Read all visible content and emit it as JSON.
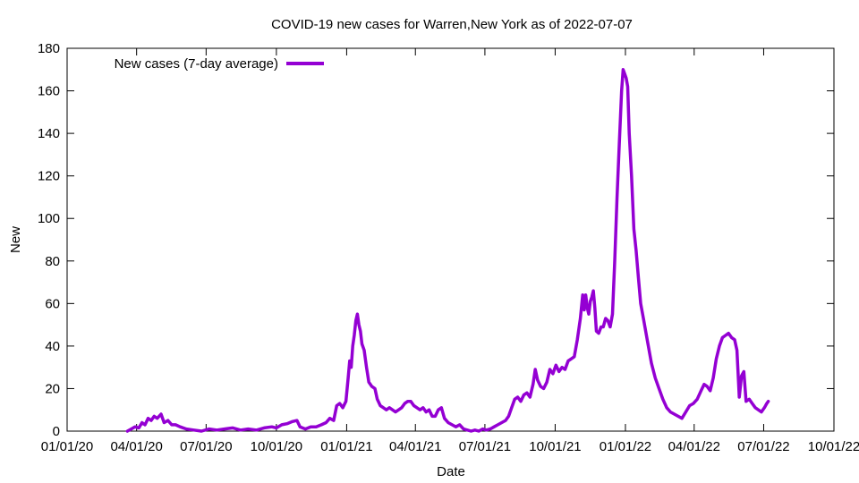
{
  "chart_data": {
    "type": "line",
    "title": "COVID-19 new cases for Warren,New York as of 2022-07-07",
    "xlabel": "Date",
    "ylabel": "New",
    "xlim": [
      "2020-01-01",
      "2022-10-01"
    ],
    "ylim": [
      0,
      180
    ],
    "x_ticks": [
      "01/01/20",
      "04/01/20",
      "07/01/20",
      "10/01/20",
      "01/01/21",
      "04/01/21",
      "07/01/21",
      "10/01/21",
      "01/01/22",
      "04/01/22",
      "07/01/22",
      "10/01/22"
    ],
    "y_ticks": [
      0,
      20,
      40,
      60,
      80,
      100,
      120,
      140,
      160,
      180
    ],
    "grid": false,
    "legend_position": "top-left",
    "series": [
      {
        "name": "New cases (7-day average)",
        "color": "#9400d3",
        "points": [
          [
            "2020-03-20",
            0
          ],
          [
            "2020-03-25",
            1
          ],
          [
            "2020-03-30",
            2
          ],
          [
            "2020-04-04",
            1.5
          ],
          [
            "2020-04-08",
            4
          ],
          [
            "2020-04-12",
            3
          ],
          [
            "2020-04-16",
            6
          ],
          [
            "2020-04-20",
            5
          ],
          [
            "2020-04-24",
            7
          ],
          [
            "2020-04-28",
            6
          ],
          [
            "2020-05-03",
            8
          ],
          [
            "2020-05-07",
            4
          ],
          [
            "2020-05-12",
            5
          ],
          [
            "2020-05-17",
            3
          ],
          [
            "2020-05-22",
            3
          ],
          [
            "2020-05-28",
            2
          ],
          [
            "2020-06-05",
            1
          ],
          [
            "2020-06-15",
            0.5
          ],
          [
            "2020-06-25",
            0
          ],
          [
            "2020-07-05",
            1
          ],
          [
            "2020-07-15",
            0.5
          ],
          [
            "2020-07-25",
            1
          ],
          [
            "2020-08-05",
            1.5
          ],
          [
            "2020-08-15",
            0.5
          ],
          [
            "2020-08-25",
            1
          ],
          [
            "2020-09-05",
            0.5
          ],
          [
            "2020-09-15",
            1.5
          ],
          [
            "2020-09-25",
            2
          ],
          [
            "2020-10-01",
            1.5
          ],
          [
            "2020-10-08",
            3
          ],
          [
            "2020-10-15",
            3.5
          ],
          [
            "2020-10-22",
            4.5
          ],
          [
            "2020-10-28",
            5
          ],
          [
            "2020-11-01",
            2
          ],
          [
            "2020-11-08",
            1
          ],
          [
            "2020-11-15",
            2
          ],
          [
            "2020-11-22",
            2
          ],
          [
            "2020-11-29",
            3
          ],
          [
            "2020-12-05",
            4
          ],
          [
            "2020-12-10",
            6
          ],
          [
            "2020-12-15",
            5
          ],
          [
            "2020-12-19",
            12
          ],
          [
            "2020-12-23",
            13
          ],
          [
            "2020-12-27",
            11
          ],
          [
            "2020-12-31",
            14
          ],
          [
            "2021-01-03",
            25
          ],
          [
            "2021-01-05",
            33
          ],
          [
            "2021-01-07",
            30
          ],
          [
            "2021-01-09",
            40
          ],
          [
            "2021-01-11",
            45
          ],
          [
            "2021-01-13",
            52
          ],
          [
            "2021-01-15",
            55
          ],
          [
            "2021-01-17",
            50
          ],
          [
            "2021-01-19",
            47
          ],
          [
            "2021-01-21",
            41
          ],
          [
            "2021-01-24",
            38
          ],
          [
            "2021-01-27",
            30
          ],
          [
            "2021-01-30",
            23
          ],
          [
            "2021-02-03",
            21
          ],
          [
            "2021-02-07",
            20
          ],
          [
            "2021-02-10",
            15
          ],
          [
            "2021-02-14",
            12
          ],
          [
            "2021-02-18",
            11
          ],
          [
            "2021-02-22",
            10
          ],
          [
            "2021-02-26",
            11
          ],
          [
            "2021-03-02",
            10
          ],
          [
            "2021-03-06",
            9
          ],
          [
            "2021-03-10",
            10
          ],
          [
            "2021-03-14",
            11
          ],
          [
            "2021-03-18",
            13
          ],
          [
            "2021-03-22",
            14
          ],
          [
            "2021-03-26",
            14
          ],
          [
            "2021-03-30",
            12
          ],
          [
            "2021-04-03",
            11
          ],
          [
            "2021-04-07",
            10
          ],
          [
            "2021-04-11",
            11
          ],
          [
            "2021-04-15",
            9
          ],
          [
            "2021-04-19",
            10
          ],
          [
            "2021-04-23",
            7
          ],
          [
            "2021-04-27",
            7
          ],
          [
            "2021-05-01",
            10
          ],
          [
            "2021-05-05",
            11
          ],
          [
            "2021-05-09",
            6
          ],
          [
            "2021-05-14",
            4
          ],
          [
            "2021-05-19",
            3
          ],
          [
            "2021-05-24",
            2
          ],
          [
            "2021-05-29",
            3
          ],
          [
            "2021-06-03",
            1
          ],
          [
            "2021-06-08",
            0.5
          ],
          [
            "2021-06-13",
            0
          ],
          [
            "2021-06-18",
            0.5
          ],
          [
            "2021-06-23",
            0
          ],
          [
            "2021-06-28",
            1
          ],
          [
            "2021-07-03",
            0.5
          ],
          [
            "2021-07-08",
            1
          ],
          [
            "2021-07-13",
            2
          ],
          [
            "2021-07-18",
            3
          ],
          [
            "2021-07-23",
            4
          ],
          [
            "2021-07-28",
            5
          ],
          [
            "2021-08-01",
            7
          ],
          [
            "2021-08-05",
            11
          ],
          [
            "2021-08-09",
            15
          ],
          [
            "2021-08-13",
            16
          ],
          [
            "2021-08-17",
            14
          ],
          [
            "2021-08-21",
            17
          ],
          [
            "2021-08-25",
            18
          ],
          [
            "2021-08-29",
            16
          ],
          [
            "2021-09-02",
            22
          ],
          [
            "2021-09-05",
            29
          ],
          [
            "2021-09-08",
            24
          ],
          [
            "2021-09-12",
            21
          ],
          [
            "2021-09-16",
            20
          ],
          [
            "2021-09-20",
            23
          ],
          [
            "2021-09-24",
            29
          ],
          [
            "2021-09-28",
            27
          ],
          [
            "2021-10-02",
            31
          ],
          [
            "2021-10-06",
            28
          ],
          [
            "2021-10-10",
            30
          ],
          [
            "2021-10-14",
            29
          ],
          [
            "2021-10-18",
            33
          ],
          [
            "2021-10-22",
            34
          ],
          [
            "2021-10-26",
            35
          ],
          [
            "2021-10-30",
            43
          ],
          [
            "2021-11-03",
            53
          ],
          [
            "2021-11-06",
            64
          ],
          [
            "2021-11-08",
            57
          ],
          [
            "2021-11-10",
            64
          ],
          [
            "2021-11-12",
            58
          ],
          [
            "2021-11-14",
            55
          ],
          [
            "2021-11-16",
            61
          ],
          [
            "2021-11-18",
            63
          ],
          [
            "2021-11-20",
            66
          ],
          [
            "2021-11-22",
            58
          ],
          [
            "2021-11-24",
            47
          ],
          [
            "2021-11-27",
            46
          ],
          [
            "2021-11-30",
            49
          ],
          [
            "2021-12-03",
            49
          ],
          [
            "2021-12-06",
            53
          ],
          [
            "2021-12-09",
            52
          ],
          [
            "2021-12-12",
            49
          ],
          [
            "2021-12-15",
            55
          ],
          [
            "2021-12-18",
            80
          ],
          [
            "2021-12-21",
            110
          ],
          [
            "2021-12-24",
            135
          ],
          [
            "2021-12-27",
            160
          ],
          [
            "2021-12-29",
            170
          ],
          [
            "2021-12-31",
            168
          ],
          [
            "2022-01-02",
            166
          ],
          [
            "2022-01-04",
            162
          ],
          [
            "2022-01-06",
            140
          ],
          [
            "2022-01-09",
            120
          ],
          [
            "2022-01-12",
            95
          ],
          [
            "2022-01-15",
            85
          ],
          [
            "2022-01-18",
            72
          ],
          [
            "2022-01-21",
            60
          ],
          [
            "2022-01-25",
            52
          ],
          [
            "2022-01-30",
            42
          ],
          [
            "2022-02-04",
            32
          ],
          [
            "2022-02-09",
            25
          ],
          [
            "2022-02-14",
            20
          ],
          [
            "2022-02-19",
            15
          ],
          [
            "2022-02-24",
            11
          ],
          [
            "2022-03-01",
            9
          ],
          [
            "2022-03-06",
            8
          ],
          [
            "2022-03-11",
            7
          ],
          [
            "2022-03-16",
            6
          ],
          [
            "2022-03-21",
            9
          ],
          [
            "2022-03-26",
            12
          ],
          [
            "2022-03-31",
            13
          ],
          [
            "2022-04-05",
            15
          ],
          [
            "2022-04-10",
            19
          ],
          [
            "2022-04-14",
            22
          ],
          [
            "2022-04-18",
            21
          ],
          [
            "2022-04-22",
            19
          ],
          [
            "2022-04-26",
            25
          ],
          [
            "2022-04-30",
            34
          ],
          [
            "2022-05-04",
            40
          ],
          [
            "2022-05-08",
            44
          ],
          [
            "2022-05-12",
            45
          ],
          [
            "2022-05-16",
            46
          ],
          [
            "2022-05-20",
            44
          ],
          [
            "2022-05-24",
            43
          ],
          [
            "2022-05-27",
            38
          ],
          [
            "2022-05-30",
            16
          ],
          [
            "2022-06-02",
            26
          ],
          [
            "2022-06-05",
            28
          ],
          [
            "2022-06-08",
            14
          ],
          [
            "2022-06-12",
            15
          ],
          [
            "2022-06-16",
            13
          ],
          [
            "2022-06-20",
            11
          ],
          [
            "2022-06-24",
            10
          ],
          [
            "2022-06-28",
            9
          ],
          [
            "2022-07-02",
            11
          ],
          [
            "2022-07-05",
            13
          ],
          [
            "2022-07-07",
            14
          ]
        ]
      }
    ]
  }
}
